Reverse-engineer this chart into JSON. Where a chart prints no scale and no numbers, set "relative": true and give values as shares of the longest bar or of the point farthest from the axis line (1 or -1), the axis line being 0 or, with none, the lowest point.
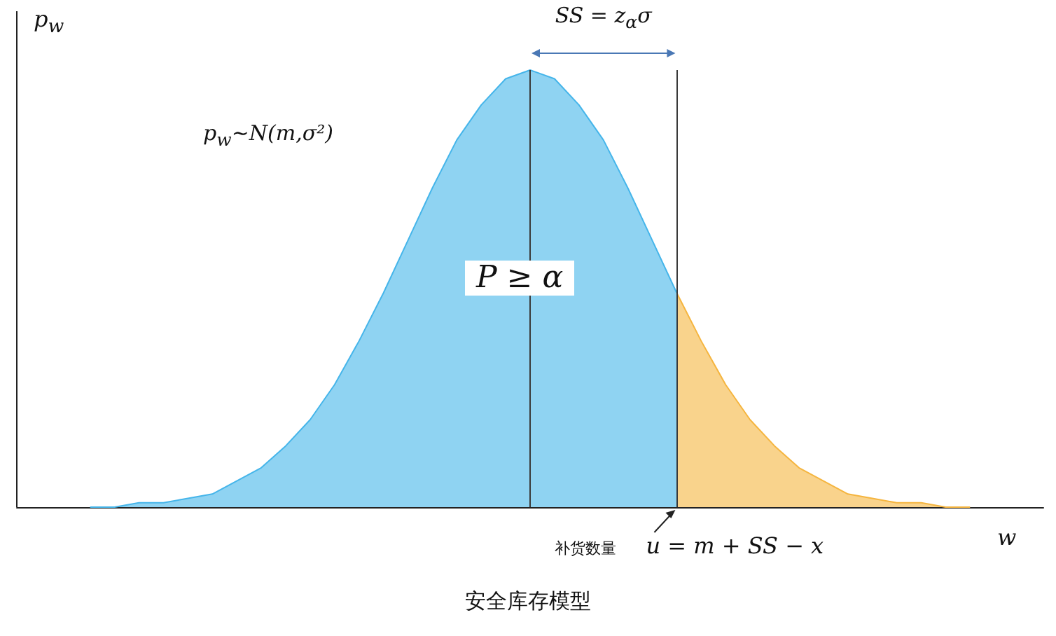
{
  "chart_data": {
    "type": "area",
    "relative": true,
    "title": "安全库存模型",
    "xlabel": "w",
    "ylabel": "p$_{w}$",
    "grid": false,
    "marker": "none",
    "categories": [
      null,
      null,
      null,
      null,
      null,
      null,
      null,
      null,
      null,
      null,
      null,
      null,
      null,
      null,
      null,
      null,
      null,
      null,
      null,
      null,
      null,
      null,
      null,
      null,
      null,
      null,
      null,
      null,
      null,
      null,
      null,
      null,
      null,
      null,
      null,
      null,
      null,
      null,
      null,
      null,
      null,
      null,
      null
    ],
    "series": [
      {
        "color": "#45b5ea",
        "values": [
          null,
          null,
          null,
          0.0,
          0.0,
          0.01,
          0.01,
          0.02,
          0.03,
          0.06,
          0.09,
          0.14,
          0.2,
          0.28,
          0.38,
          0.49,
          0.61,
          0.73,
          0.84,
          0.92,
          0.98,
          1,
          0.98,
          0.92,
          0.84,
          0.73,
          0.61,
          0.49,
          null,
          null,
          null,
          null,
          null,
          null,
          null,
          null,
          null,
          null,
          null,
          null,
          null,
          null,
          null
        ]
      },
      {
        "color": "#f5b53f",
        "values": [
          null,
          null,
          null,
          null,
          null,
          null,
          null,
          null,
          null,
          null,
          null,
          null,
          null,
          null,
          null,
          null,
          null,
          null,
          null,
          null,
          null,
          null,
          null,
          null,
          null,
          null,
          null,
          0.49,
          0.38,
          0.28,
          0.2,
          0.14,
          0.09,
          0.06,
          0.03,
          0.02,
          0.01,
          0.01,
          0.0,
          0.0,
          null,
          null,
          null
        ]
      }
    ],
    "annotations": [
      "p$_{w}$~N(m,σ²)",
      "P ≥ α",
      "SS = z$_{α}$σ",
      "补货数量",
      "u = m + SS − x"
    ]
  }
}
